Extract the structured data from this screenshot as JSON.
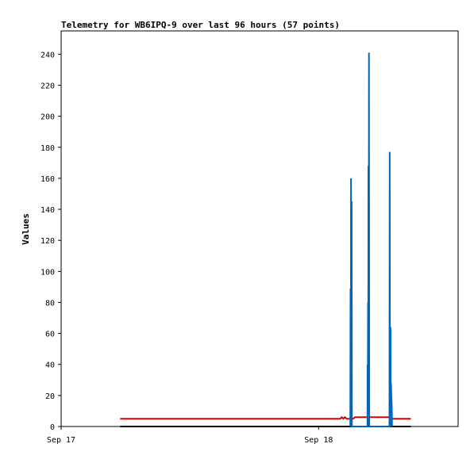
{
  "chart_data": {
    "type": "line",
    "title": "Telemetry for WB6IPQ-9 over last 96 hours (57 points)",
    "xlabel": "",
    "ylabel": "Values",
    "x_ticks": [
      {
        "label": "Sep 17",
        "hour": 0
      },
      {
        "label": "Sep 18",
        "hour": 24
      }
    ],
    "xlim": [
      0,
      37
    ],
    "ylim": [
      0,
      255
    ],
    "y_ticks": [
      0,
      20,
      40,
      60,
      80,
      100,
      120,
      140,
      160,
      180,
      200,
      220,
      240
    ],
    "grid": false,
    "legend": "none",
    "series": [
      {
        "color": "#000000",
        "points": [
          [
            5.5,
            0
          ],
          [
            32.6,
            0
          ]
        ]
      },
      {
        "color": "#dd0000",
        "points": [
          [
            5.5,
            5
          ],
          [
            26.0,
            5
          ],
          [
            26.15,
            6
          ],
          [
            26.3,
            5
          ],
          [
            26.45,
            6
          ],
          [
            26.6,
            5
          ],
          [
            27.2,
            5
          ],
          [
            27.4,
            6
          ],
          [
            29.6,
            6
          ],
          [
            29.8,
            6
          ],
          [
            30.5,
            6
          ],
          [
            30.8,
            5
          ],
          [
            31.8,
            5
          ],
          [
            32.6,
            5
          ]
        ]
      },
      {
        "color": "#0066bb",
        "points": [
          [
            26.95,
            0
          ],
          [
            26.97,
            89
          ],
          [
            27.0,
            0
          ],
          [
            27.02,
            160
          ],
          [
            27.05,
            0
          ],
          [
            27.08,
            145
          ],
          [
            27.1,
            0
          ],
          [
            28.55,
            0
          ],
          [
            28.56,
            40
          ],
          [
            28.58,
            0
          ],
          [
            28.6,
            80
          ],
          [
            28.62,
            0
          ],
          [
            28.64,
            168
          ],
          [
            28.66,
            0
          ],
          [
            28.69,
            241
          ],
          [
            28.72,
            0
          ],
          [
            30.6,
            0
          ],
          [
            30.62,
            177
          ],
          [
            30.65,
            0
          ],
          [
            30.7,
            64
          ],
          [
            30.72,
            0
          ],
          [
            30.75,
            28
          ],
          [
            30.78,
            20
          ],
          [
            30.82,
            12
          ],
          [
            30.84,
            0
          ]
        ]
      }
    ]
  }
}
